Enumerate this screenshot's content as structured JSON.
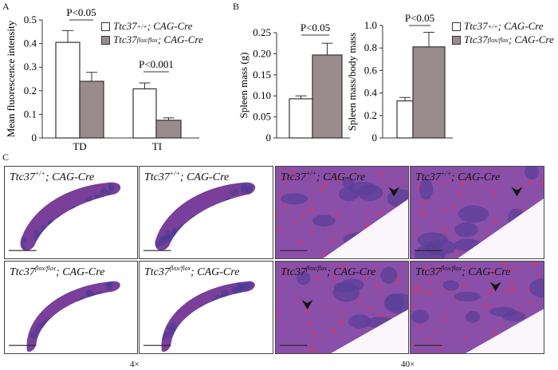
{
  "panel_labels": {
    "a": "A",
    "b": "B",
    "c": "C"
  },
  "legend": {
    "wt": {
      "gene": "Ttc37",
      "sup": "+/+",
      "suffix": "; CAG-Cre"
    },
    "ko": {
      "gene": "Ttc37",
      "sup": "flox/flox",
      "suffix": "; CAG-Cre"
    }
  },
  "colors": {
    "wt": "#ffffff",
    "ko": "#9a8c8c",
    "stain": "#7a3f9a"
  },
  "chart_data": [
    {
      "type": "bar",
      "title": "",
      "ylabel": "Mean fluorescence intensity",
      "xlabel": "",
      "ylim": [
        0,
        0.5
      ],
      "yticks": [
        0,
        0.1,
        0.2,
        0.3,
        0.4,
        0.5
      ],
      "ytick_labels": [
        "0",
        "0.1",
        "0.2",
        "0.3",
        "0.4",
        "0.5"
      ],
      "categories": [
        "TD",
        "TI"
      ],
      "series": [
        {
          "name": "Ttc37+/+; CAG-Cre",
          "values": [
            0.405,
            0.208
          ],
          "errors": [
            0.05,
            0.025
          ]
        },
        {
          "name": "Ttc37flox/flox; CAG-Cre",
          "values": [
            0.24,
            0.075
          ],
          "errors": [
            0.038,
            0.01
          ]
        }
      ],
      "annotations": [
        "P<0.05",
        "P<0.001"
      ],
      "legend_position": "top-right"
    },
    {
      "type": "bar",
      "ylabel": "Spleen mass (g)",
      "ylim": [
        0,
        0.25
      ],
      "yticks": [
        0,
        0.05,
        0.1,
        0.15,
        0.2,
        0.25
      ],
      "ytick_labels": [
        "0",
        "0.05",
        "0.10",
        "0.15",
        "0.20",
        "0.25"
      ],
      "categories": [
        ""
      ],
      "series": [
        {
          "name": "Ttc37+/+; CAG-Cre",
          "values": [
            0.093
          ],
          "errors": [
            0.007
          ]
        },
        {
          "name": "Ttc37flox/flox; CAG-Cre",
          "values": [
            0.197
          ],
          "errors": [
            0.028
          ]
        }
      ],
      "annotations": [
        "P<0.05"
      ]
    },
    {
      "type": "bar",
      "ylabel": "Spleen mass/body mass",
      "ylim": [
        0,
        1.0
      ],
      "yticks": [
        0,
        0.2,
        0.4,
        0.6,
        0.8,
        1.0
      ],
      "ytick_labels": [
        "0",
        "0.2",
        "0.4",
        "0.6",
        "0.8",
        "1.0"
      ],
      "categories": [
        ""
      ],
      "series": [
        {
          "name": "Ttc37+/+; CAG-Cre",
          "values": [
            0.33
          ],
          "errors": [
            0.03
          ]
        },
        {
          "name": "Ttc37flox/flox; CAG-Cre",
          "values": [
            0.81
          ],
          "errors": [
            0.13
          ]
        }
      ],
      "annotations": [
        "P<0.05"
      ],
      "legend_position": "right"
    }
  ],
  "histology": {
    "panels": [
      {
        "genotype": "wt",
        "gene": "Ttc37",
        "sup": "+/+",
        "suffix": "; CAG-Cre",
        "mag": "4x"
      },
      {
        "genotype": "wt",
        "gene": "Ttc37",
        "sup": "+/+",
        "suffix": "; CAG-Cre",
        "mag": "4x"
      },
      {
        "genotype": "wt",
        "gene": "Ttc37",
        "sup": "+/+",
        "suffix": "; CAG-Cre",
        "mag": "40x"
      },
      {
        "genotype": "wt",
        "gene": "Ttc37",
        "sup": "+/+",
        "suffix": "; CAG-Cre",
        "mag": "40x"
      },
      {
        "genotype": "ko",
        "gene": "Ttc37",
        "sup": "flox/flox",
        "suffix": "; CAG-Cre",
        "mag": "4x"
      },
      {
        "genotype": "ko",
        "gene": "Ttc37",
        "sup": "flox/flox",
        "suffix": "; CAG-Cre",
        "mag": "4x"
      },
      {
        "genotype": "ko",
        "gene": "Ttc37",
        "sup": "flox/flox",
        "suffix": "; CAG-Cre",
        "mag": "40x"
      },
      {
        "genotype": "ko",
        "gene": "Ttc37",
        "sup": "flox/flox",
        "suffix": "; CAG-Cre",
        "mag": "40x"
      }
    ],
    "magnification_labels": {
      "low": "4×",
      "high": "40×"
    }
  }
}
